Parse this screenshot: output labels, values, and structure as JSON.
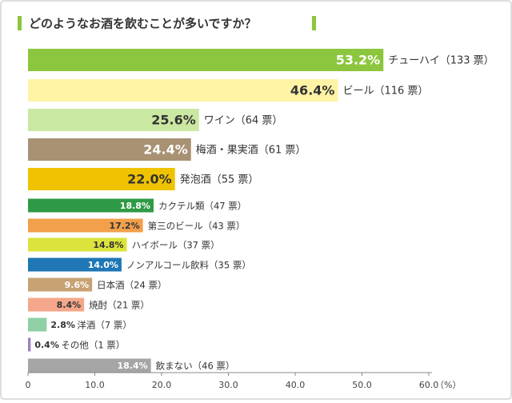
{
  "chart_data": {
    "type": "bar",
    "orientation": "horizontal",
    "title": "どのようなお酒を飲むことが多いですか？",
    "categories": [
      "チューハイ（133 票）",
      "ビール（116 票）",
      "ワイン（64 票）",
      "梅酒・果実酒（61 票）",
      "発泡酒（55 票）",
      "カクテル類（47 票）",
      "第三のビール（43 票）",
      "ハイボール（37 票）",
      "ノンアルコール飲料（35 票）",
      "日本酒（24 票）",
      "焼酎（21 票）",
      "洋酒（7 票）",
      "その他（1 票）",
      "飲まない（46 票）"
    ],
    "values": [
      53.2,
      46.4,
      25.6,
      24.4,
      22.0,
      18.8,
      17.2,
      14.8,
      14.0,
      9.6,
      8.4,
      2.8,
      0.4,
      18.4
    ],
    "value_labels": [
      "53.2%",
      "46.4%",
      "25.6%",
      "24.4%",
      "22.0%",
      "18.8%",
      "17.2%",
      "14.8%",
      "14.0%",
      "9.6%",
      "8.4%",
      "2.8%",
      "0.4%",
      "18.4%"
    ],
    "colors": [
      "#8cc63e",
      "#fff3a6",
      "#cbe8a2",
      "#a89273",
      "#f0c300",
      "#2f9a46",
      "#f2a04b",
      "#dce33b",
      "#1f77b5",
      "#c8a273",
      "#f4a78a",
      "#8fd0a6",
      "#9b80c0",
      "#a5a5a5"
    ],
    "xlim": [
      0,
      60
    ],
    "xticks": [
      0,
      {
        "value": 10,
        "label": "10.0"
      },
      {
        "value": 20,
        "label": "20.0"
      },
      {
        "value": 30,
        "label": "30.0"
      },
      {
        "value": 40,
        "label": "40.0"
      },
      {
        "value": 50,
        "label": "50.0"
      },
      {
        "value": 60,
        "label": "60.0"
      }
    ],
    "x_unit": "（%）",
    "grid": false
  }
}
